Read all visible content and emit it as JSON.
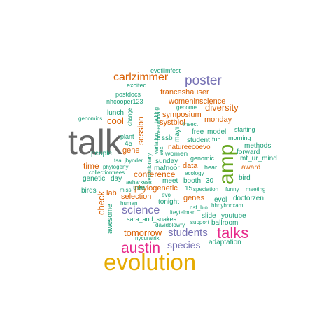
{
  "palette": {
    "gray": "#666666",
    "gold": "#E6AB02",
    "magenta": "#E7298A",
    "green": "#66A61E",
    "purple": "#7570B3",
    "orange": "#D95F02",
    "teal": "#1B9E77"
  },
  "words": [
    {
      "text": "talk",
      "weight": 10,
      "color": "gray"
    },
    {
      "text": "evolution",
      "weight": 9,
      "color": "gold"
    },
    {
      "text": "amp",
      "weight": 8,
      "color": "green"
    },
    {
      "text": "talks",
      "weight": 7,
      "color": "magenta"
    },
    {
      "text": "austin",
      "weight": 7,
      "color": "magenta"
    },
    {
      "text": "poster",
      "weight": 6,
      "color": "purple"
    },
    {
      "text": "science",
      "weight": 6,
      "color": "purple"
    },
    {
      "text": "students",
      "weight": 6,
      "color": "purple"
    },
    {
      "text": "species",
      "weight": 5,
      "color": "purple"
    },
    {
      "text": "carlzimmer",
      "weight": 5,
      "color": "orange"
    },
    {
      "text": "diversity",
      "weight": 4,
      "color": "orange"
    },
    {
      "text": "tomorrow",
      "weight": 4,
      "color": "orange"
    },
    {
      "text": "check",
      "weight": 4,
      "color": "orange"
    },
    {
      "text": "cool",
      "weight": 4,
      "color": "orange"
    },
    {
      "text": "session",
      "weight": 4,
      "color": "orange"
    },
    {
      "text": "conference",
      "weight": 3,
      "color": "orange"
    },
    {
      "text": "selection",
      "weight": 3,
      "color": "orange"
    },
    {
      "text": "phylogenetic",
      "weight": 3,
      "color": "orange"
    },
    {
      "text": "genes",
      "weight": 3,
      "color": "orange"
    },
    {
      "text": "time",
      "weight": 3,
      "color": "orange"
    },
    {
      "text": "franceshauser",
      "weight": 3,
      "color": "orange"
    },
    {
      "text": "womeninscience",
      "weight": 3,
      "color": "orange"
    },
    {
      "text": "symposium",
      "weight": 3,
      "color": "orange"
    },
    {
      "text": "systbiol",
      "weight": 3,
      "color": "orange"
    },
    {
      "text": "monday",
      "weight": 3,
      "color": "orange"
    },
    {
      "text": "natureecoevo",
      "weight": 3,
      "color": "orange"
    },
    {
      "text": "gene",
      "weight": 3,
      "color": "orange"
    },
    {
      "text": "data",
      "weight": 3,
      "color": "orange"
    },
    {
      "text": "lab",
      "weight": 3,
      "color": "orange"
    },
    {
      "text": "award",
      "weight": 3,
      "color": "orange"
    },
    {
      "text": "forward",
      "weight": 2,
      "color": "teal"
    },
    {
      "text": "mafnoor",
      "weight": 2,
      "color": "teal"
    },
    {
      "text": "booth",
      "weight": 2,
      "color": "teal"
    },
    {
      "text": "women",
      "weight": 2,
      "color": "teal"
    },
    {
      "text": "sunday",
      "weight": 2,
      "color": "teal"
    },
    {
      "text": "meet",
      "weight": 2,
      "color": "teal"
    },
    {
      "text": "evol",
      "weight": 2,
      "color": "teal"
    },
    {
      "text": "doctorzen",
      "weight": 2,
      "color": "teal"
    },
    {
      "text": "mt_ur_mind",
      "weight": 2,
      "color": "teal"
    },
    {
      "text": "methods",
      "weight": 2,
      "color": "teal"
    },
    {
      "text": "tree",
      "weight": 2,
      "color": "teal"
    },
    {
      "text": "tonight",
      "weight": 2,
      "color": "teal"
    },
    {
      "text": "awesome",
      "weight": 2,
      "color": "teal"
    },
    {
      "text": "45",
      "weight": 2,
      "color": "teal"
    },
    {
      "text": "30",
      "weight": 2,
      "color": "teal"
    },
    {
      "text": "15",
      "weight": 2,
      "color": "teal"
    },
    {
      "text": "day",
      "weight": 2,
      "color": "teal"
    },
    {
      "text": "people",
      "weight": 2,
      "color": "teal"
    },
    {
      "text": "genetic",
      "weight": 2,
      "color": "teal"
    },
    {
      "text": "birds",
      "weight": 2,
      "color": "teal"
    },
    {
      "text": "bird",
      "weight": 2,
      "color": "teal"
    },
    {
      "text": "youtube",
      "weight": 2,
      "color": "teal"
    },
    {
      "text": "slide",
      "weight": 2,
      "color": "teal"
    },
    {
      "text": "ballroom",
      "weight": 2,
      "color": "teal"
    },
    {
      "text": "adaptation",
      "weight": 2,
      "color": "teal"
    },
    {
      "text": "free",
      "weight": 2,
      "color": "teal"
    },
    {
      "text": "model",
      "weight": 2,
      "color": "teal"
    },
    {
      "text": "student",
      "weight": 2,
      "color": "teal"
    },
    {
      "text": "ssb",
      "weight": 2,
      "color": "teal"
    },
    {
      "text": "mayr",
      "weight": 2,
      "color": "teal"
    },
    {
      "text": "morning",
      "weight": 2,
      "color": "teal"
    },
    {
      "text": "lunch",
      "weight": 2,
      "color": "teal"
    },
    {
      "text": "plant",
      "weight": 1,
      "color": "teal"
    },
    {
      "text": "fun",
      "weight": 1,
      "color": "teal"
    },
    {
      "text": "starting",
      "weight": 1,
      "color": "teal"
    },
    {
      "text": "genomic",
      "weight": 1,
      "color": "teal"
    },
    {
      "text": "hear",
      "weight": 1,
      "color": "teal"
    },
    {
      "text": "evofilmfest",
      "weight": 1,
      "color": "teal"
    },
    {
      "text": "excited",
      "weight": 1,
      "color": "teal"
    },
    {
      "text": "postdocs",
      "weight": 1,
      "color": "teal"
    },
    {
      "text": "nhcooper123",
      "weight": 1,
      "color": "teal"
    },
    {
      "text": "genomics",
      "weight": 1,
      "color": "teal"
    },
    {
      "text": "change",
      "weight": 1,
      "color": "teal"
    },
    {
      "text": "talking",
      "weight": 1,
      "color": "teal"
    },
    {
      "text": "omearabrian",
      "weight": 1,
      "color": "teal"
    },
    {
      "text": "evolutionary",
      "weight": 1,
      "color": "teal"
    },
    {
      "text": "variation",
      "weight": 1,
      "color": "teal"
    },
    {
      "text": "sex",
      "weight": 1,
      "color": "teal"
    },
    {
      "text": "genome",
      "weight": 1,
      "color": "teal"
    },
    {
      "text": "insect",
      "weight": 1,
      "color": "teal"
    },
    {
      "text": "tsa",
      "weight": 1,
      "color": "teal"
    },
    {
      "text": "jbyoder",
      "weight": 1,
      "color": "teal"
    },
    {
      "text": "phylogeny",
      "weight": 1,
      "color": "teal"
    },
    {
      "text": "collectiontrees",
      "weight": 1,
      "color": "teal"
    },
    {
      "text": "ecology",
      "weight": 1,
      "color": "teal"
    },
    {
      "text": "miss",
      "weight": 1,
      "color": "teal"
    },
    {
      "text": "aeharkess",
      "weight": 1,
      "color": "teal"
    },
    {
      "text": "human",
      "weight": 1,
      "color": "teal"
    },
    {
      "text": "speciation",
      "weight": 1,
      "color": "teal"
    },
    {
      "text": "funny",
      "weight": 1,
      "color": "teal"
    },
    {
      "text": "meeting",
      "weight": 1,
      "color": "teal"
    },
    {
      "text": "nsf_bio",
      "weight": 1,
      "color": "teal"
    },
    {
      "text": "hhnybncxam",
      "weight": 1,
      "color": "teal"
    },
    {
      "text": "lteytelman",
      "weight": 1,
      "color": "teal"
    },
    {
      "text": "sara_and_snakes",
      "weight": 1,
      "color": "teal"
    },
    {
      "text": "support",
      "weight": 1,
      "color": "teal"
    },
    {
      "text": "davidblowry",
      "weight": 1,
      "color": "teal"
    },
    {
      "text": "nycuratrix",
      "weight": 1,
      "color": "teal"
    },
    {
      "text": "evo",
      "weight": 1,
      "color": "teal"
    }
  ]
}
